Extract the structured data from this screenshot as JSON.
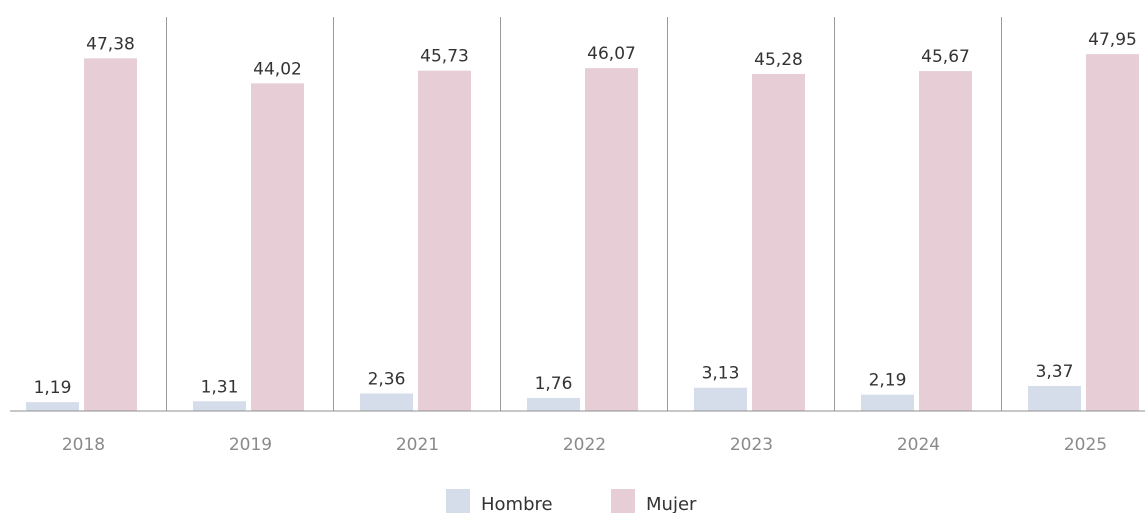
{
  "chart_data": {
    "type": "bar",
    "title": "",
    "xlabel": "",
    "ylabel": "",
    "categories": [
      "2018",
      "2019",
      "2021",
      "2022",
      "2023",
      "2024",
      "2025"
    ],
    "series": [
      {
        "name": "Hombre",
        "color": "#d5dcea",
        "values": [
          1.19,
          1.31,
          2.36,
          1.76,
          3.13,
          2.19,
          3.37
        ],
        "labels": [
          "1,19",
          "1,31",
          "2,36",
          "1,76",
          "3,13",
          "2,19",
          "3,37"
        ]
      },
      {
        "name": "Mujer",
        "color": "#e6cdd6",
        "values": [
          47.38,
          44.02,
          45.73,
          46.07,
          45.28,
          45.67,
          47.95
        ],
        "labels": [
          "47,38",
          "44,02",
          "45,73",
          "46,07",
          "45,28",
          "45,67",
          "47,95"
        ]
      }
    ],
    "ylim": [
      0,
      52
    ],
    "grid": false,
    "legend_position": "bottom-center"
  }
}
